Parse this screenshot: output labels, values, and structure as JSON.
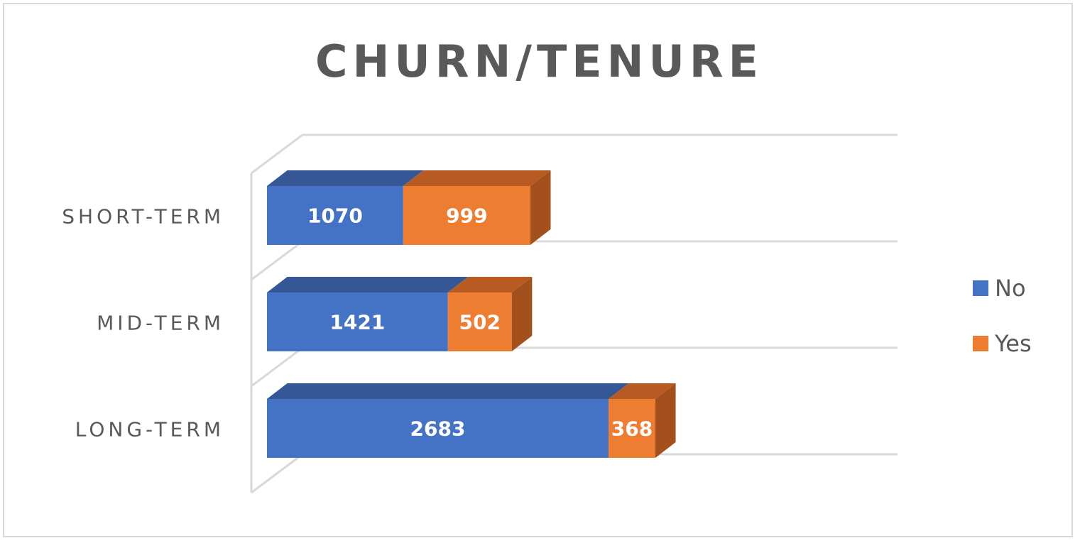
{
  "chart_data": {
    "type": "bar",
    "orientation": "horizontal",
    "stacked": true,
    "style": "3d",
    "title": "CHURN/TENURE",
    "categories": [
      "SHORT-TERM",
      "MID-TERM",
      "LONG-TERM"
    ],
    "series": [
      {
        "name": "No",
        "values": [
          1070,
          1421,
          2683
        ],
        "color": "#4472C4",
        "top_color": "#355796",
        "side_color": "#2F4F8A"
      },
      {
        "name": "Yes",
        "values": [
          999,
          502,
          368
        ],
        "color": "#ED7D31",
        "top_color": "#B85B22",
        "side_color": "#A3501D"
      }
    ],
    "xlim": [
      0,
      4250
    ],
    "grid": true,
    "x_axis_visible": false,
    "data_labels": true,
    "legend": {
      "position": "right",
      "entries": [
        "No",
        "Yes"
      ]
    }
  }
}
